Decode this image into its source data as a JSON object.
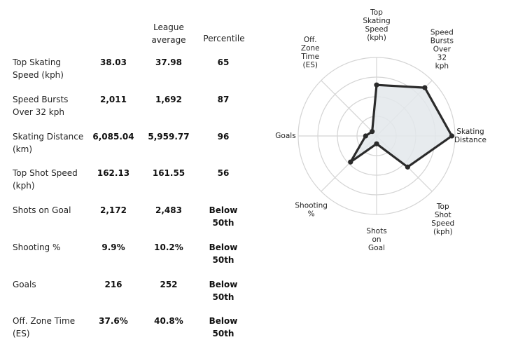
{
  "table": {
    "headers": [
      "League\naverage",
      "Percentile"
    ],
    "rows": [
      {
        "label": "Top Skating\nSpeed (kph)",
        "value": "38.03",
        "avg": "37.98",
        "pct": "65"
      },
      {
        "label": "Speed Bursts\nOver 32 kph",
        "value": "2,011",
        "avg": "1,692",
        "pct": "87"
      },
      {
        "label": "Skating Distance\n(km)",
        "value": "6,085.04",
        "avg": "5,959.77",
        "pct": "96"
      },
      {
        "label": "Top Shot Speed\n(kph)",
        "value": "162.13",
        "avg": "161.55",
        "pct": "56"
      },
      {
        "label": "Shots on Goal",
        "value": "2,172",
        "avg": "2,483",
        "pct": "Below\n50th"
      },
      {
        "label": "Shooting %",
        "value": "9.9%",
        "avg": "10.2%",
        "pct": "Below\n50th"
      },
      {
        "label": "Goals",
        "value": "216",
        "avg": "252",
        "pct": "Below\n50th"
      },
      {
        "label": "Off. Zone Time\n(ES)",
        "value": "37.6%",
        "avg": "40.8%",
        "pct": "Below\n50th"
      }
    ]
  },
  "chart_data": {
    "type": "radar",
    "axes": [
      "Top\nSkating\nSpeed\n(kph)",
      "Speed\nBursts\nOver\n32\nkph",
      "Skating\nDistance",
      "Top\nShot\nSpeed\n(kph)",
      "Shots\non\nGoal",
      "Shooting\n%",
      "Goals",
      "Off.\nZone\nTime\n(ES)"
    ],
    "values": [
      65,
      87,
      96,
      56,
      10,
      47,
      14,
      8
    ],
    "range": [
      0,
      100
    ],
    "grid": true,
    "colors": {
      "fill": "#e3e7eb",
      "line": "#2b2b2b",
      "point": "#2b2b2b",
      "grid": "#d4d4d4"
    }
  }
}
